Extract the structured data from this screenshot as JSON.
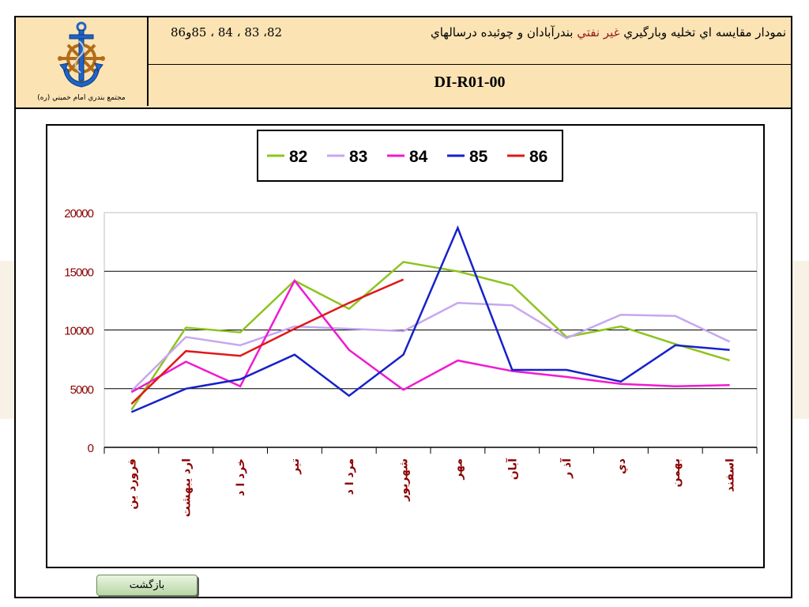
{
  "header": {
    "title": "نمودار مقايسه اي تخليه وبارگيري غير نفتي بندرآبادان و چوئبده درسالهاي",
    "title_highlight": "غير نفتي",
    "years": "82، 83 ، 84 ، 85و86",
    "code": "DI-R01-00",
    "logo_caption": "مجتمع بندري امام خميني (ره)"
  },
  "back_button": {
    "label": "بازگشت"
  },
  "colors": {
    "header_bg": "#fbe3b4",
    "axis_text": "#8b0000",
    "s82": "#8dc41f",
    "s83": "#c6a7f0",
    "s84": "#f01ad1",
    "s85": "#1621c9",
    "s86": "#e01818"
  },
  "chart_data": {
    "type": "line",
    "categories": [
      "فروردين",
      "ارديبهشت",
      "خرداد",
      "تير",
      "مرداد",
      "شهريور",
      "مهر",
      "آبان",
      "آذر",
      "دي",
      "بهمن",
      "اسفند"
    ],
    "category_labels": [
      "فرورد ين",
      "ارد يبهشت",
      "خرد ا د",
      "تير",
      "مرد ا د",
      "شهريور",
      "مهر",
      "آبان",
      "آذ ر",
      "دي",
      "بهمن",
      "اسفند"
    ],
    "ylim": [
      0,
      20000
    ],
    "yticks": [
      "0",
      "5000",
      "10000",
      "15000",
      "20000"
    ],
    "grid": true,
    "legend": "top",
    "series": [
      {
        "name": "82",
        "color": "#8dc41f",
        "values": [
          3200,
          10200,
          9800,
          14200,
          11800,
          15800,
          15000,
          13800,
          9400,
          10300,
          8800,
          7400
        ]
      },
      {
        "name": "83",
        "color": "#c6a7f0",
        "values": [
          4800,
          9400,
          8700,
          10300,
          10100,
          9900,
          12300,
          12100,
          9300,
          11300,
          11200,
          9000
        ]
      },
      {
        "name": "84",
        "color": "#f01ad1",
        "values": [
          4700,
          7300,
          5200,
          14200,
          8300,
          4900,
          7400,
          6500,
          6000,
          5400,
          5200,
          5300
        ]
      },
      {
        "name": "85",
        "color": "#1621c9",
        "values": [
          3000,
          5000,
          5800,
          7900,
          4400,
          7900,
          18700,
          6600,
          6600,
          5600,
          8700,
          8300
        ]
      },
      {
        "name": "86",
        "color": "#e01818",
        "values": [
          3700,
          8200,
          7800,
          10100,
          12300,
          14300,
          null,
          null,
          null,
          null,
          null,
          null
        ]
      }
    ]
  }
}
